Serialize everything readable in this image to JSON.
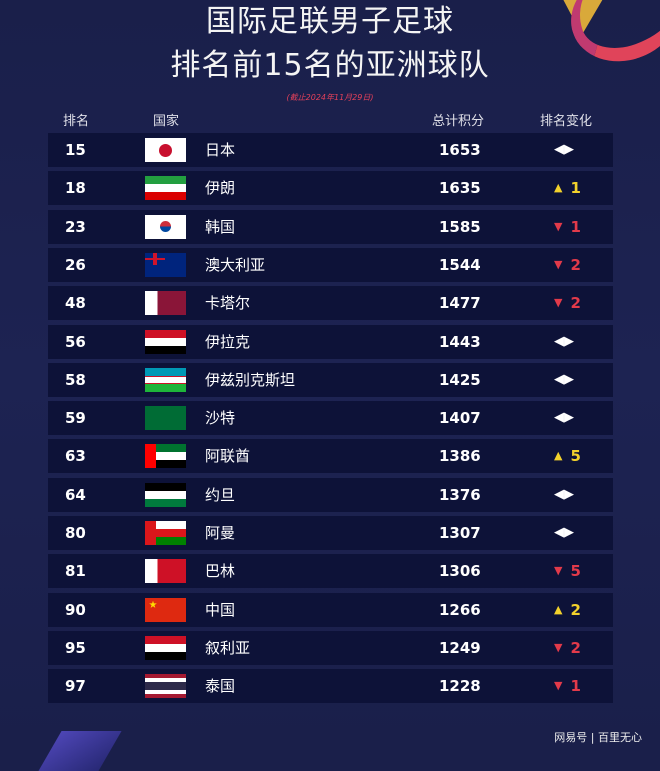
{
  "title_line1": "国际足联男子足球",
  "title_line2": "排名前15名的亚洲球队",
  "note": "(截止2024年11月29日)",
  "headers": {
    "rank": "排名",
    "country": "国家",
    "points": "总计积分",
    "change": "排名变化"
  },
  "colors": {
    "up": "#f2d12c",
    "down": "#e23a4a",
    "row_bg": "#0d1238"
  },
  "rows": [
    {
      "rank": "15",
      "country": "日本",
      "flag": "japan",
      "points": "1653",
      "dir": "same",
      "delta": ""
    },
    {
      "rank": "18",
      "country": "伊朗",
      "flag": "iran",
      "points": "1635",
      "dir": "up",
      "delta": "1"
    },
    {
      "rank": "23",
      "country": "韩国",
      "flag": "korea",
      "points": "1585",
      "dir": "down",
      "delta": "1"
    },
    {
      "rank": "26",
      "country": "澳大利亚",
      "flag": "australia",
      "points": "1544",
      "dir": "down",
      "delta": "2"
    },
    {
      "rank": "48",
      "country": "卡塔尔",
      "flag": "qatar",
      "points": "1477",
      "dir": "down",
      "delta": "2"
    },
    {
      "rank": "56",
      "country": "伊拉克",
      "flag": "iraq",
      "points": "1443",
      "dir": "same",
      "delta": ""
    },
    {
      "rank": "58",
      "country": "伊兹别克斯坦",
      "flag": "uzbekistan",
      "points": "1425",
      "dir": "same",
      "delta": ""
    },
    {
      "rank": "59",
      "country": "沙特",
      "flag": "saudi",
      "points": "1407",
      "dir": "same",
      "delta": ""
    },
    {
      "rank": "63",
      "country": "阿联酋",
      "flag": "uae",
      "points": "1386",
      "dir": "up",
      "delta": "5"
    },
    {
      "rank": "64",
      "country": "约旦",
      "flag": "jordan",
      "points": "1376",
      "dir": "same",
      "delta": ""
    },
    {
      "rank": "80",
      "country": "阿曼",
      "flag": "oman",
      "points": "1307",
      "dir": "same",
      "delta": ""
    },
    {
      "rank": "81",
      "country": "巴林",
      "flag": "bahrain",
      "points": "1306",
      "dir": "down",
      "delta": "5"
    },
    {
      "rank": "90",
      "country": "中国",
      "flag": "china",
      "points": "1266",
      "dir": "up",
      "delta": "2"
    },
    {
      "rank": "95",
      "country": "叙利亚",
      "flag": "syria",
      "points": "1249",
      "dir": "down",
      "delta": "2"
    },
    {
      "rank": "97",
      "country": "泰国",
      "flag": "thailand",
      "points": "1228",
      "dir": "down",
      "delta": "1"
    }
  ],
  "watermark": "网易号 | 百里无心"
}
